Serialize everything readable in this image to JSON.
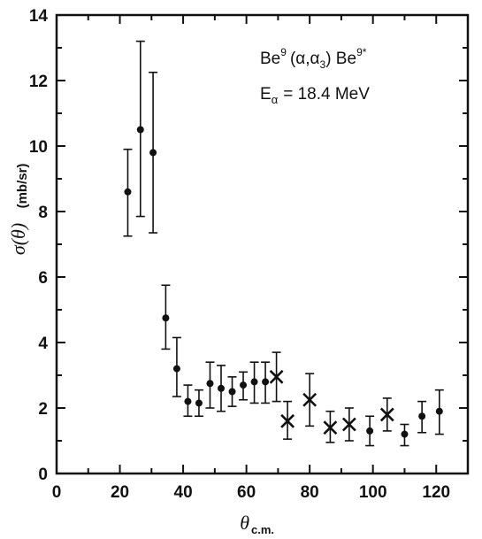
{
  "chart_data": {
    "type": "scatter",
    "title": "",
    "xlabel": "θ",
    "xlabel_sub": "c.m.",
    "ylabel": "σ(θ)",
    "yunit": "(mb/sr)",
    "xlim": [
      0,
      130
    ],
    "ylim": [
      0,
      14
    ],
    "xticks": [
      0,
      20,
      40,
      60,
      80,
      100,
      120
    ],
    "yticks": [
      0,
      2,
      4,
      6,
      8,
      10,
      12,
      14
    ],
    "grid": false,
    "annotation_reaction": {
      "prefix": "Be",
      "sup1": "9",
      "middle": "(α,α",
      "sub": "3",
      "suffix": ") Be",
      "sup2": "9*"
    },
    "annotation_energy": {
      "symbol": "E",
      "sub": "α",
      "value": "= 18.4 MeV"
    },
    "series": [
      {
        "marker": "dot",
        "points": [
          {
            "x": 22.5,
            "y": 8.6,
            "lo": 7.25,
            "hi": 9.9
          },
          {
            "x": 26.5,
            "y": 10.5,
            "lo": 7.85,
            "hi": 13.2
          },
          {
            "x": 30.5,
            "y": 9.8,
            "lo": 7.35,
            "hi": 12.25
          },
          {
            "x": 34.5,
            "y": 4.75,
            "lo": 3.8,
            "hi": 5.75
          },
          {
            "x": 38.0,
            "y": 3.2,
            "lo": 2.35,
            "hi": 4.15
          },
          {
            "x": 41.5,
            "y": 2.2,
            "lo": 1.75,
            "hi": 2.7
          },
          {
            "x": 45.0,
            "y": 2.15,
            "lo": 1.75,
            "hi": 2.55
          },
          {
            "x": 48.5,
            "y": 2.75,
            "lo": 2.0,
            "hi": 3.4
          },
          {
            "x": 52.0,
            "y": 2.6,
            "lo": 1.9,
            "hi": 3.3
          },
          {
            "x": 55.5,
            "y": 2.5,
            "lo": 2.05,
            "hi": 2.95
          },
          {
            "x": 59.0,
            "y": 2.7,
            "lo": 2.25,
            "hi": 3.1
          },
          {
            "x": 62.5,
            "y": 2.8,
            "lo": 2.15,
            "hi": 3.4
          },
          {
            "x": 66.0,
            "y": 2.8,
            "lo": 2.15,
            "hi": 3.4
          },
          {
            "x": 99.0,
            "y": 1.3,
            "lo": 0.85,
            "hi": 1.75
          },
          {
            "x": 110.0,
            "y": 1.2,
            "lo": 0.85,
            "hi": 1.5
          },
          {
            "x": 115.5,
            "y": 1.75,
            "lo": 1.25,
            "hi": 2.2
          },
          {
            "x": 121.0,
            "y": 1.9,
            "lo": 1.2,
            "hi": 2.55
          }
        ]
      },
      {
        "marker": "cross",
        "points": [
          {
            "x": 69.5,
            "y": 2.95,
            "lo": 2.2,
            "hi": 3.7
          },
          {
            "x": 73.0,
            "y": 1.6,
            "lo": 1.05,
            "hi": 2.2
          },
          {
            "x": 80.0,
            "y": 2.25,
            "lo": 1.45,
            "hi": 3.05
          },
          {
            "x": 86.5,
            "y": 1.4,
            "lo": 0.95,
            "hi": 1.9
          },
          {
            "x": 92.5,
            "y": 1.5,
            "lo": 1.0,
            "hi": 2.0
          },
          {
            "x": 104.5,
            "y": 1.8,
            "lo": 1.3,
            "hi": 2.3
          }
        ]
      }
    ]
  }
}
